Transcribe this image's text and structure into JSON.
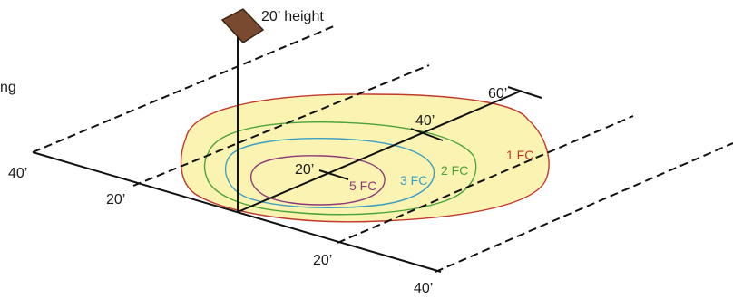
{
  "fixture": {
    "height_label": "20’ height",
    "cut_text": "ng"
  },
  "axis_labels": {
    "left_40": "40’",
    "left_20": "20’",
    "bottom_20": "20’",
    "bottom_40": "40’",
    "center_20": "20’",
    "center_40": "40’",
    "center_60": "60’"
  },
  "contours": [
    {
      "label": "1 FC",
      "color": "#c0392b",
      "fill": "#fbf3b2"
    },
    {
      "label": "2 FC",
      "color": "#4aa23a",
      "fill": "none"
    },
    {
      "label": "3 FC",
      "color": "#3a9ec4",
      "fill": "none"
    },
    {
      "label": "5 FC",
      "color": "#8e3a7a",
      "fill": "none"
    }
  ],
  "colors": {
    "line": "#111111",
    "fixture": "#7a4a30",
    "fixture_edge": "#3a2414"
  }
}
